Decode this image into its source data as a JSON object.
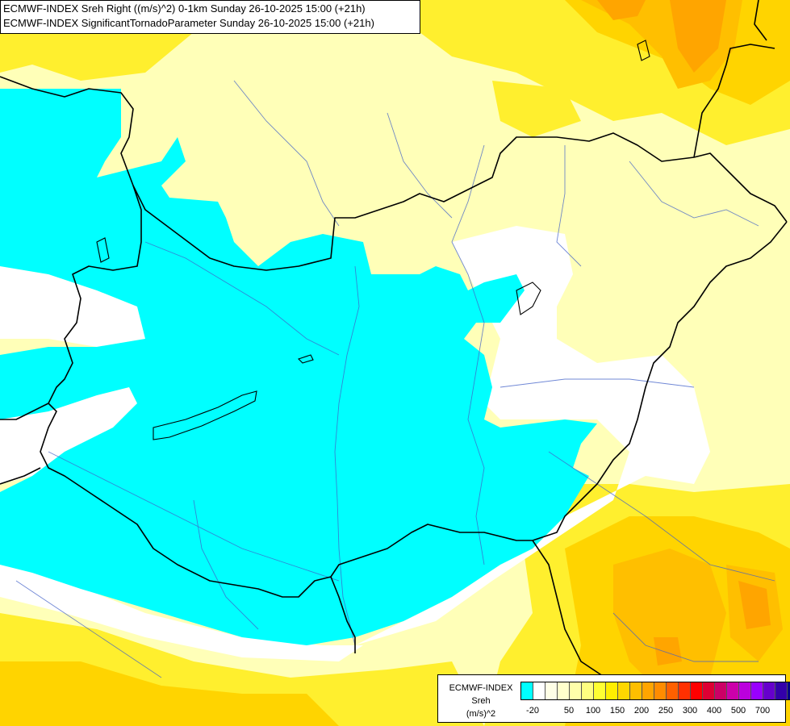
{
  "title_lines": [
    "ECMWF-INDEX Sreh Right ((m/s)^2) 0-1km Sunday 26-10-2025 15:00 (+21h)",
    "ECMWF-INDEX SignificantTornadoParameter Sunday 26-10-2025 15:00 (+21h)"
  ],
  "legend": {
    "source": "ECMWF-INDEX",
    "variable": "Sreh",
    "unit": "(m/s)^2",
    "colors": [
      "#00ffff",
      "#ffffff",
      "#ffffe6",
      "#ffffcc",
      "#ffffaa",
      "#ffff80",
      "#ffff33",
      "#ffee00",
      "#ffd700",
      "#ffbf00",
      "#ffa500",
      "#ff8c00",
      "#ff6000",
      "#ff3000",
      "#ff0000",
      "#dd0033",
      "#cc0066",
      "#cc00aa",
      "#bb00dd",
      "#9900ff",
      "#6600cc",
      "#3300aa",
      "#000088"
    ],
    "tick_labels": [
      "-20",
      "50",
      "100",
      "150",
      "200",
      "250",
      "300",
      "400",
      "500",
      "700"
    ]
  }
}
